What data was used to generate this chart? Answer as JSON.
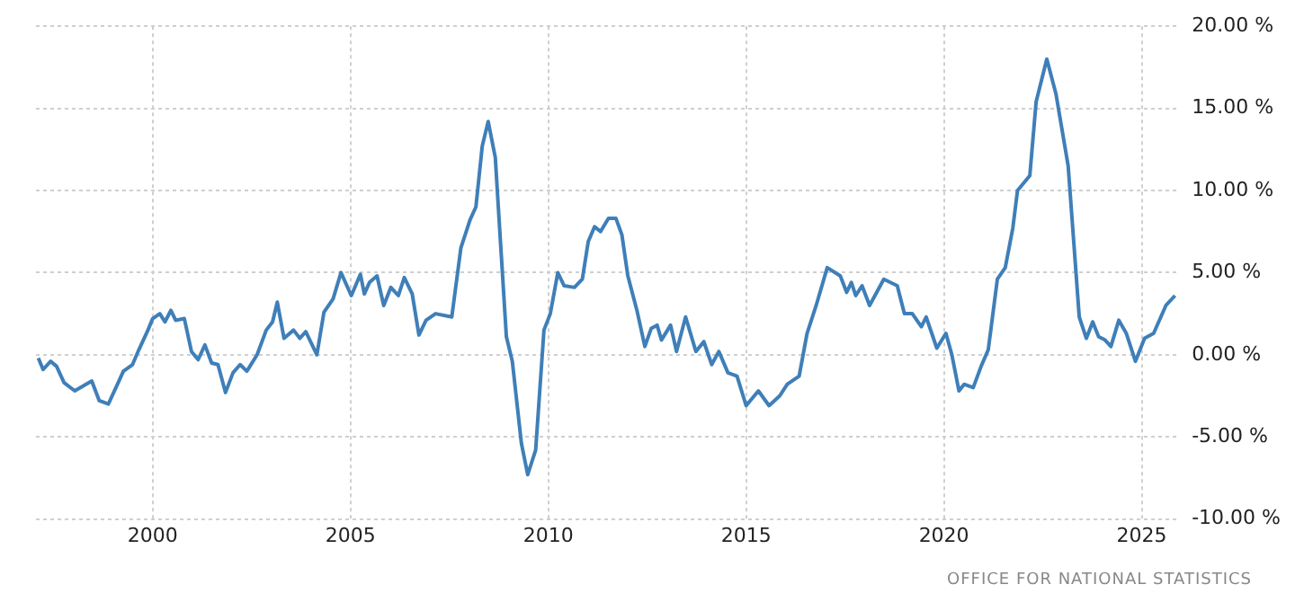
{
  "chart_data": {
    "type": "line",
    "x": [
      1997.11,
      1997.23,
      1997.42,
      1997.57,
      1997.76,
      1998.03,
      1998.46,
      1998.65,
      1998.88,
      1999.11,
      1999.26,
      1999.49,
      1999.65,
      1999.88,
      2000.0,
      2000.18,
      2000.31,
      2000.46,
      2000.58,
      2000.8,
      2000.98,
      2001.15,
      2001.32,
      2001.49,
      2001.65,
      2001.84,
      2002.03,
      2002.21,
      2002.38,
      2002.64,
      2002.87,
      2003.03,
      2003.15,
      2003.32,
      2003.56,
      2003.72,
      2003.87,
      2004.15,
      2004.33,
      2004.56,
      2004.76,
      2005.02,
      2005.25,
      2005.35,
      2005.48,
      2005.67,
      2005.84,
      2006.02,
      2006.21,
      2006.36,
      2006.56,
      2006.73,
      2006.91,
      2007.15,
      2007.56,
      2007.79,
      2008.02,
      2008.17,
      2008.33,
      2008.48,
      2008.66,
      2008.79,
      2008.94,
      2009.09,
      2009.32,
      2009.48,
      2009.68,
      2009.89,
      2010.05,
      2010.24,
      2010.4,
      2010.66,
      2010.86,
      2011.01,
      2011.17,
      2011.32,
      2011.52,
      2011.71,
      2011.86,
      2012.01,
      2012.24,
      2012.44,
      2012.6,
      2012.75,
      2012.86,
      2013.09,
      2013.24,
      2013.47,
      2013.73,
      2013.93,
      2014.13,
      2014.31,
      2014.54,
      2014.77,
      2015.0,
      2015.31,
      2015.58,
      2015.85,
      2016.04,
      2016.34,
      2016.54,
      2016.77,
      2017.05,
      2017.38,
      2017.54,
      2017.66,
      2017.77,
      2017.93,
      2018.12,
      2018.48,
      2018.82,
      2019.0,
      2019.2,
      2019.43,
      2019.55,
      2019.82,
      2020.05,
      2020.2,
      2020.38,
      2020.51,
      2020.74,
      2020.94,
      2021.12,
      2021.35,
      2021.55,
      2021.74,
      2021.86,
      2022.17,
      2022.33,
      2022.6,
      2022.83,
      2023.14,
      2023.42,
      2023.6,
      2023.76,
      2023.91,
      2024.07,
      2024.22,
      2024.42,
      2024.61,
      2024.84,
      2025.07,
      2025.3,
      2025.61,
      2025.84
    ],
    "series": [
      {
        "color": "#3f7fb8",
        "values": [
          -0.2,
          -0.9,
          -0.4,
          -0.7,
          -1.7,
          -2.2,
          -1.6,
          -2.8,
          -3.0,
          -1.8,
          -1.0,
          -0.6,
          0.3,
          1.5,
          2.2,
          2.5,
          2.0,
          2.7,
          2.1,
          2.2,
          0.2,
          -0.3,
          0.6,
          -0.5,
          -0.6,
          -2.3,
          -1.1,
          -0.6,
          -1.0,
          0.0,
          1.5,
          2.0,
          3.2,
          1.0,
          1.5,
          1.0,
          1.4,
          0.0,
          2.6,
          3.4,
          5.0,
          3.6,
          4.9,
          3.7,
          4.4,
          4.8,
          3.0,
          4.1,
          3.6,
          4.7,
          3.7,
          1.2,
          2.1,
          2.5,
          2.3,
          6.5,
          8.2,
          9.0,
          12.7,
          14.2,
          12.0,
          6.9,
          1.1,
          -0.4,
          -5.4,
          -7.3,
          -5.8,
          1.5,
          2.5,
          5.0,
          4.2,
          4.1,
          4.6,
          6.9,
          7.8,
          7.5,
          8.3,
          8.3,
          7.3,
          4.8,
          2.7,
          0.5,
          1.6,
          1.8,
          0.9,
          1.8,
          0.2,
          2.3,
          0.2,
          0.8,
          -0.6,
          0.2,
          -1.1,
          -1.3,
          -3.1,
          -2.2,
          -3.1,
          -2.5,
          -1.8,
          -1.3,
          1.3,
          3.0,
          5.3,
          4.8,
          3.8,
          4.4,
          3.6,
          4.2,
          3.0,
          4.6,
          4.2,
          2.5,
          2.5,
          1.7,
          2.3,
          0.4,
          1.3,
          0.0,
          -2.2,
          -1.8,
          -2.0,
          -0.7,
          0.3,
          4.6,
          5.3,
          7.7,
          10.0,
          10.9,
          15.4,
          18.0,
          15.9,
          11.5,
          2.3,
          1.0,
          2.0,
          1.1,
          0.9,
          0.5,
          2.1,
          1.3,
          -0.4,
          1.0,
          1.3,
          3.0,
          3.6
        ]
      }
    ],
    "xlim": [
      1997.05,
      2025.9
    ],
    "xticks": [
      2000,
      2005,
      2010,
      2015,
      2020,
      2025
    ],
    "ylim": [
      -10,
      20
    ],
    "yticks": [
      {
        "value": -10,
        "label": "-10.00 %"
      },
      {
        "value": -5,
        "label": "-5.00 %"
      },
      {
        "value": 0,
        "label": "0.00 %"
      },
      {
        "value": 5,
        "label": "5.00 %"
      },
      {
        "value": 10,
        "label": "10.00 %"
      },
      {
        "value": 15,
        "label": "15.00 %"
      },
      {
        "value": 20,
        "label": "20.00 %"
      }
    ],
    "grid": true,
    "legend": false,
    "annotations": [
      "OFFICE FOR NATIONAL STATISTICS"
    ]
  }
}
